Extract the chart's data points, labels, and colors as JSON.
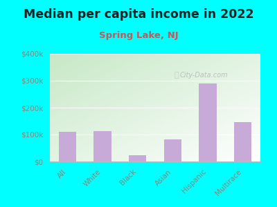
{
  "title": "Median per capita income in 2022",
  "subtitle": "Spring Lake, NJ",
  "categories": [
    "All",
    "White",
    "Black",
    "Asian",
    "Hispanic",
    "Multirace"
  ],
  "values": [
    110000,
    112000,
    22000,
    82000,
    290000,
    145000
  ],
  "bar_color": "#c8aad8",
  "background_outer": "#00ffff",
  "gradient_top_left": "#c8e8c8",
  "gradient_bottom_right": "#f0faf0",
  "title_fontsize": 12.5,
  "title_color": "#222222",
  "subtitle_fontsize": 9.5,
  "subtitle_color": "#cc5555",
  "tick_color": "#888877",
  "ylim": [
    0,
    400000
  ],
  "yticks": [
    0,
    100000,
    200000,
    300000,
    400000
  ],
  "ytick_labels": [
    "$0",
    "$100k",
    "$200k",
    "$300k",
    "$400k"
  ],
  "watermark": "City-Data.com"
}
